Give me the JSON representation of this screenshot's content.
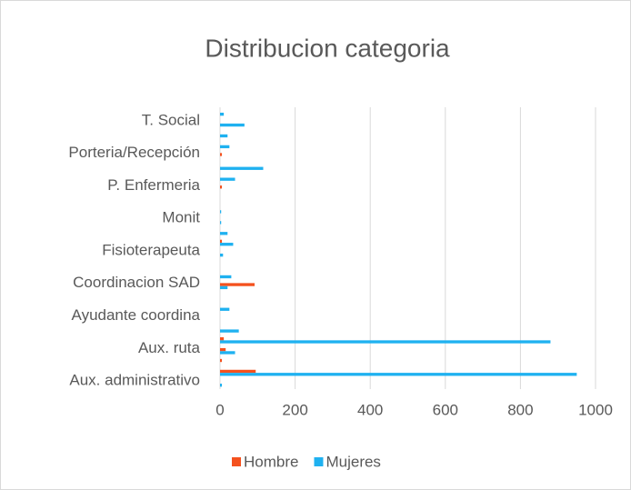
{
  "chart_data": {
    "type": "hbar",
    "title": "Distribucion categoria",
    "categories": [
      "Aux. administrativo",
      null,
      null,
      "Aux. ruta",
      null,
      null,
      "Ayudante coordina",
      null,
      null,
      "Coordinacion SAD",
      null,
      null,
      "Fisioterapeuta",
      null,
      null,
      "Monit",
      null,
      null,
      "P. Enfermeria",
      null,
      null,
      "Porteria/Recepción",
      null,
      null,
      "T. Social",
      null
    ],
    "series": [
      {
        "name": "Hombre",
        "color": "#f4511e",
        "values": [
          0,
          95,
          5,
          15,
          10,
          0,
          0,
          0,
          0,
          92,
          0,
          0,
          0,
          5,
          0,
          0,
          0,
          0,
          5,
          0,
          0,
          5,
          0,
          0,
          0,
          0
        ]
      },
      {
        "name": "Mujeres",
        "color": "#1fb1f0",
        "values": [
          5,
          950,
          0,
          40,
          880,
          50,
          0,
          25,
          0,
          20,
          30,
          0,
          8,
          35,
          20,
          3,
          3,
          0,
          0,
          40,
          115,
          0,
          25,
          20,
          65,
          10
        ]
      }
    ],
    "xlim": [
      0,
      1000
    ],
    "xticks": [
      0,
      200,
      400,
      600,
      800,
      1000
    ],
    "grid": true,
    "legend": "bottom"
  }
}
